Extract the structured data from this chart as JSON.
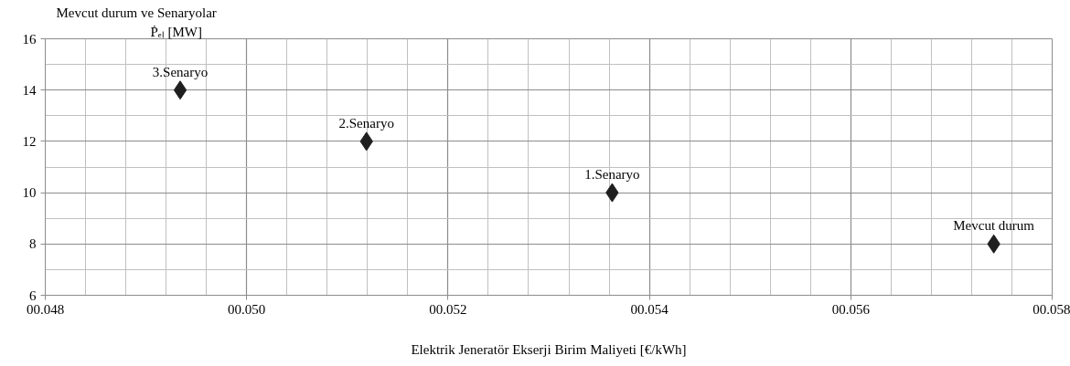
{
  "chart_data": {
    "type": "scatter",
    "title": "Mevcut durum ve Senaryolar",
    "ylabel": "Ṗₑₗ [MW]",
    "xlabel": "Elektrik Jeneratör Ekserji Birim Maliyeti [€/kWh]",
    "x": [
      0.05742,
      0.05363,
      0.05119,
      0.04934
    ],
    "series": [
      {
        "color": "#1f1f1f",
        "values": [
          8,
          10,
          12,
          14
        ]
      }
    ],
    "marker": "diamond",
    "grid": true,
    "xlim": [
      0.048,
      0.058
    ],
    "xticks": [
      {
        "value": 0.048,
        "label": "00.048"
      },
      {
        "value": 0.05,
        "label": "00.050"
      },
      {
        "value": 0.052,
        "label": "00.052"
      },
      {
        "value": 0.054,
        "label": "00.054"
      },
      {
        "value": 0.056,
        "label": "00.056"
      },
      {
        "value": 0.058,
        "label": "00.058"
      }
    ],
    "ylim": [
      6,
      16
    ],
    "yticks": [
      6,
      8,
      10,
      12,
      14,
      16
    ],
    "annotations": [
      {
        "text": "Mevcut durum",
        "x": 0.05742,
        "y": 8
      },
      {
        "text": "1.Senaryo",
        "x": 0.05363,
        "y": 10
      },
      {
        "text": "2.Senaryo",
        "x": 0.05119,
        "y": 12
      },
      {
        "text": "3.Senaryo",
        "x": 0.04934,
        "y": 14
      }
    ]
  }
}
